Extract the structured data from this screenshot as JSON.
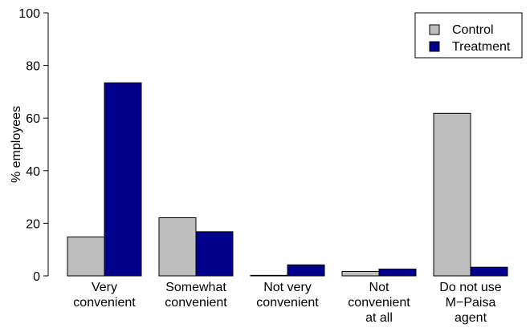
{
  "chart_data": {
    "type": "bar",
    "categories": [
      [
        "Very",
        "convenient"
      ],
      [
        "Somewhat",
        "convenient"
      ],
      [
        "Not very",
        "convenient"
      ],
      [
        "Not",
        "convenient",
        "at all"
      ],
      [
        "Do not use",
        "M−Paisa",
        "agent"
      ]
    ],
    "series": [
      {
        "name": "Control",
        "color": "#bebebe",
        "values": [
          14.8,
          22.1,
          0.2,
          1.7,
          61.8
        ]
      },
      {
        "name": "Treatment",
        "color": "#00008b",
        "values": [
          73.4,
          16.8,
          4.2,
          2.6,
          3.3
        ]
      }
    ],
    "ylabel": "% employees",
    "ylim": [
      0,
      100
    ],
    "yticks": [
      0,
      20,
      40,
      60,
      80,
      100
    ],
    "legend_position": "top-right",
    "grid": false
  }
}
